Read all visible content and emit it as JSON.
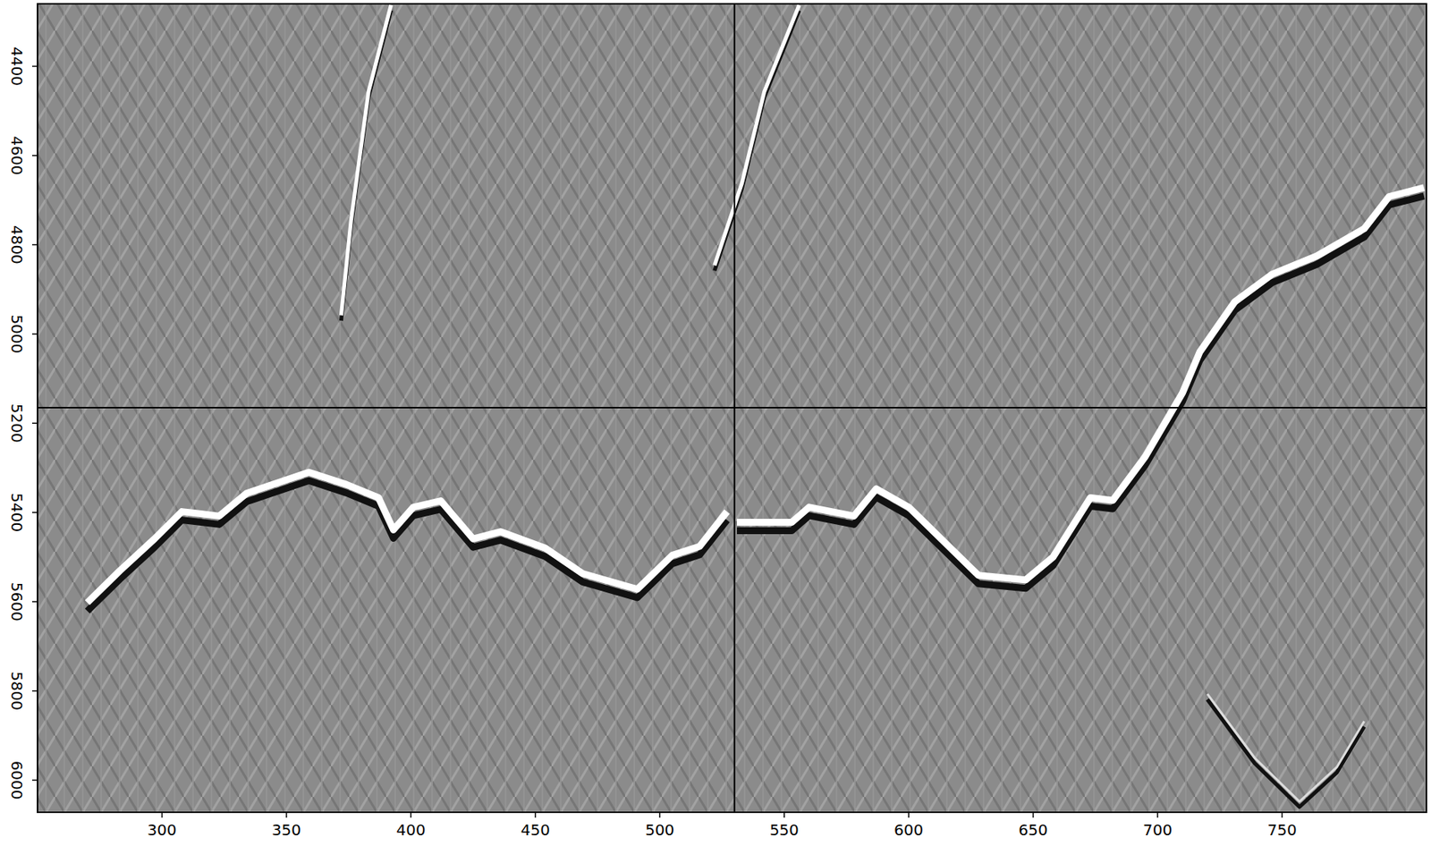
{
  "chart_data": {
    "type": "line",
    "xlim": [
      250,
      808
    ],
    "ylim": [
      6072,
      4260
    ],
    "xticks": [
      300,
      350,
      400,
      450,
      500,
      550,
      600,
      650,
      700,
      750
    ],
    "yticks": [
      4400,
      4600,
      4800,
      5000,
      5200,
      5400,
      5600,
      5800,
      6000
    ],
    "crosshair": {
      "x": 530,
      "y": 5165
    },
    "series": [
      {
        "color": "#ffffff",
        "x": [
          270,
          283,
          297,
          308,
          323,
          334,
          359,
          374,
          387,
          393,
          401,
          412,
          425,
          436,
          454,
          469,
          491,
          505,
          516,
          527,
          529,
          531,
          553,
          560,
          578,
          587,
          600,
          628,
          647,
          658,
          673,
          682,
          695,
          710,
          717,
          731,
          746,
          764,
          783,
          793,
          807
        ],
        "values": [
          5602,
          5531,
          5459,
          5398,
          5408,
          5357,
          5310,
          5337,
          5367,
          5439,
          5388,
          5374,
          5459,
          5443,
          5480,
          5537,
          5572,
          5496,
          5476,
          5398,
          null,
          5422,
          5422,
          5388,
          5408,
          5347,
          5388,
          5541,
          5551,
          5500,
          5367,
          5373,
          5275,
          5132,
          5040,
          4928,
          4866,
          4825,
          4764,
          4692,
          4672
        ]
      },
      {
        "color": "#ffffff",
        "x": [
          556,
          542,
          533,
          522
        ],
        "values": [
          4263,
          4457,
          4662,
          4846
        ]
      },
      {
        "color": "#ffffff",
        "x": [
          392,
          383,
          376,
          372
        ],
        "values": [
          4263,
          4457,
          4744,
          4958
        ]
      },
      {
        "color": "#dddddd",
        "x": [
          720,
          739,
          757,
          772,
          783
        ],
        "values": [
          5807,
          5950,
          6048,
          5971,
          5868
        ]
      }
    ]
  }
}
